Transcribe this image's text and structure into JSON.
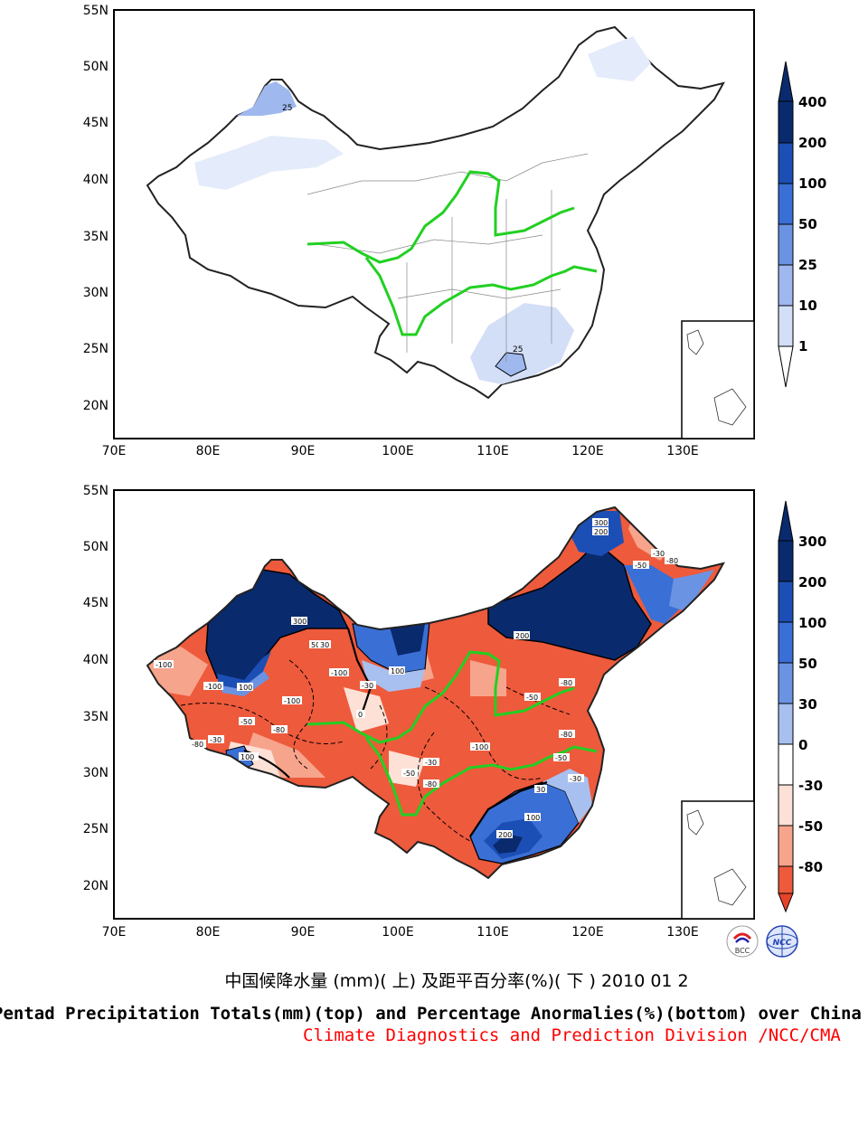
{
  "axes": {
    "lat_labels": [
      "55N",
      "50N",
      "45N",
      "40N",
      "35N",
      "30N",
      "25N",
      "20N"
    ],
    "lon_labels": [
      "70E",
      "80E",
      "90E",
      "100E",
      "110E",
      "120E",
      "130E"
    ]
  },
  "top_map": {
    "contour_labels": [
      "25",
      "25"
    ],
    "colorbar": {
      "labels": [
        "400",
        "200",
        "100",
        "50",
        "25",
        "10",
        "1"
      ],
      "colors": [
        "#0a2a6e",
        "#1c4fb5",
        "#3a6fd6",
        "#6b93e3",
        "#9fb8ee",
        "#d3def7",
        "#ffffff"
      ]
    }
  },
  "bottom_map": {
    "contour_labels": [
      "300",
      "200",
      "-30",
      "-50",
      "-80",
      "-100",
      "100",
      "50",
      "30",
      "0",
      "-100",
      "-80",
      "-50",
      "300",
      "200",
      "100",
      "-30",
      "-80",
      "-50",
      "200",
      "100",
      "30",
      "-80",
      "-100",
      "-30",
      "-50",
      "-30",
      "-100",
      "-80",
      "-50",
      "-30",
      "100",
      "-100",
      "-80"
    ],
    "colorbar": {
      "labels": [
        "300",
        "200",
        "100",
        "50",
        "30",
        "0",
        "-30",
        "-50",
        "-80"
      ],
      "colors": [
        "#0a2a6e",
        "#1c4fb5",
        "#3a6fd6",
        "#6b93e3",
        "#a8c0f0",
        "#ffffff",
        "#fde0d6",
        "#f7a48c",
        "#ee5a3c",
        "#e8442a"
      ]
    }
  },
  "captions": {
    "chinese": "中国候降水量 (mm)( 上) 及距平百分率(%)( 下 ) 2010 01 2",
    "english": "Pentad Precipitation Totals(mm)(top) and Percentage Anormalies(%)(bottom) over China",
    "credit": "Climate Diagnostics and Prediction Division /NCC/CMA"
  },
  "logos": {
    "left": "BCC",
    "right": "NCC"
  }
}
